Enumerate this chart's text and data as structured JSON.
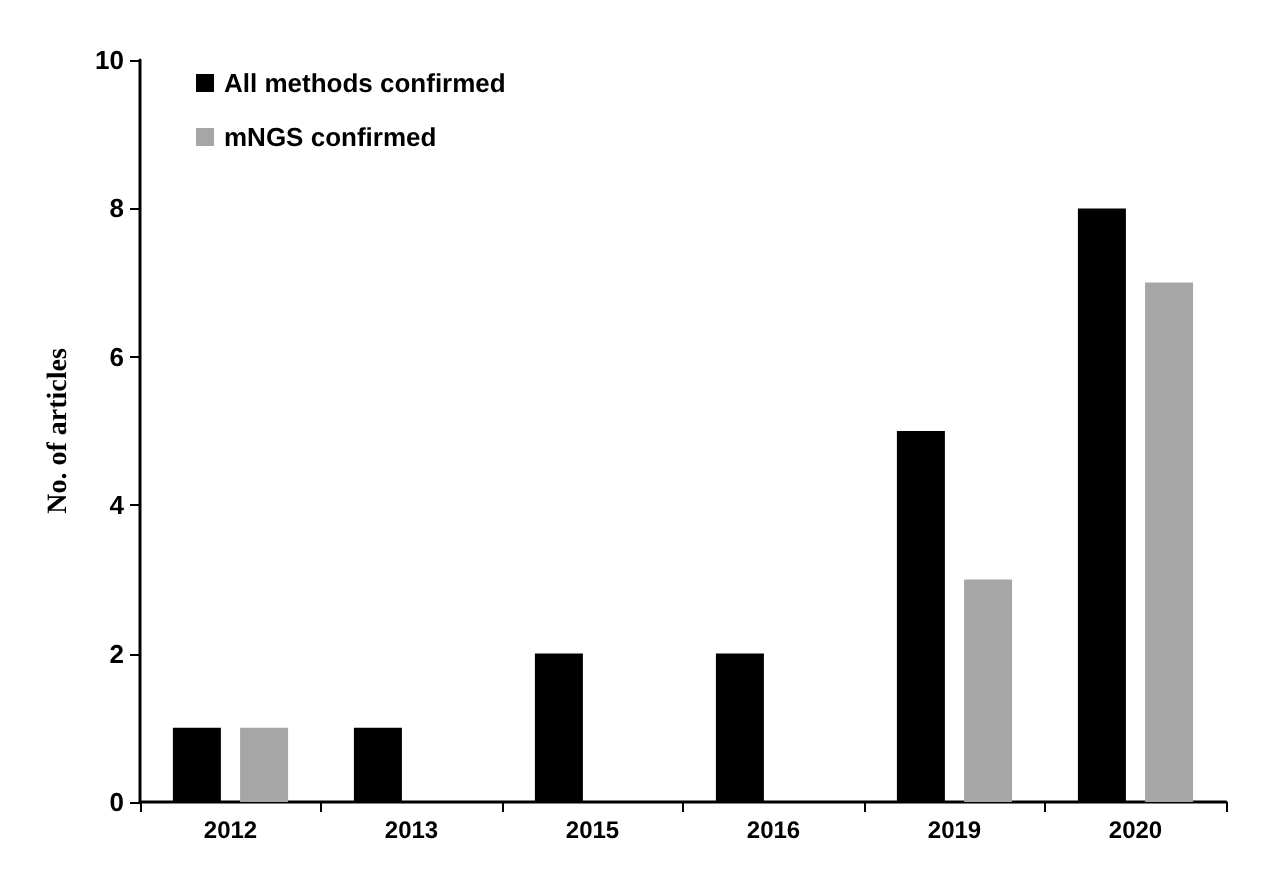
{
  "chart_data": {
    "type": "bar",
    "ylabel": "No. of articles",
    "categories": [
      "2012",
      "2013",
      "2015",
      "2016",
      "2019",
      "2020"
    ],
    "series": [
      {
        "name": "All methods confirmed",
        "color": "#000000",
        "values": [
          1,
          1,
          2,
          2,
          5,
          8
        ]
      },
      {
        "name": "mNGS confirmed",
        "color": "#a6a6a6",
        "values": [
          1,
          null,
          null,
          null,
          3,
          7
        ]
      }
    ],
    "ylim": [
      0,
      10
    ],
    "yticks": [
      0,
      2,
      4,
      6,
      8,
      10
    ],
    "grid": false,
    "legend": "top left"
  }
}
